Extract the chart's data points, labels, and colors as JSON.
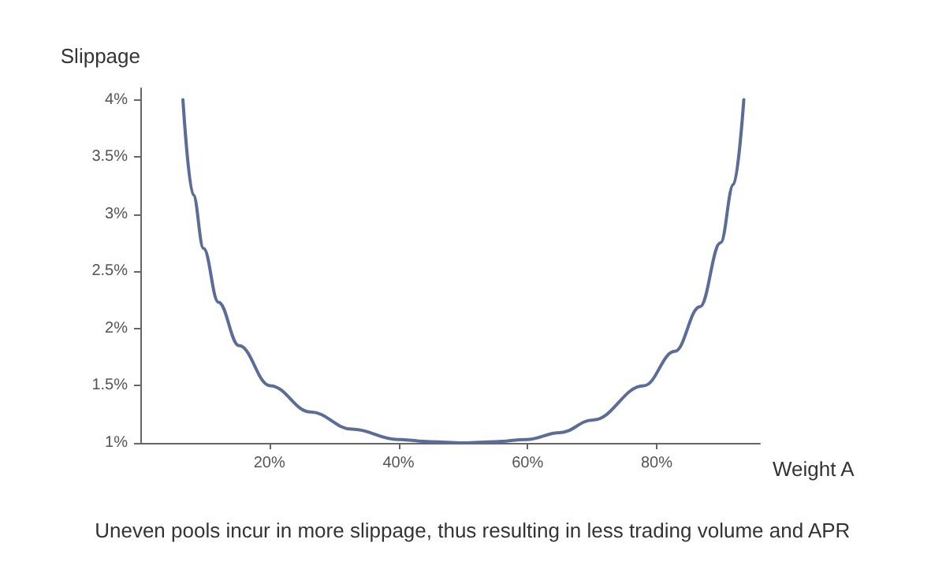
{
  "chart_data": {
    "type": "line",
    "xlabel": "Weight A",
    "ylabel": "Slippage",
    "annotations": [
      "Uneven pools incur in more slippage, thus resulting in less trading volume and APR"
    ],
    "series": [
      {
        "color": "#5b6d97",
        "x": [
          6.6,
          8.2,
          9.8,
          12.1,
          15.3,
          20.1,
          26.4,
          32.8,
          39.9,
          45,
          50,
          55,
          59.8,
          65,
          70.1,
          78,
          82.8,
          86.7,
          89.9,
          91.9,
          93.5
        ],
        "values": [
          4.0,
          3.17,
          2.7,
          2.23,
          1.85,
          1.5,
          1.27,
          1.12,
          1.03,
          1.01,
          1.0,
          1.01,
          1.03,
          1.09,
          1.2,
          1.5,
          1.8,
          2.19,
          2.75,
          3.26,
          4.0
        ]
      }
    ],
    "xlim": [
      0,
      96
    ],
    "ylim": [
      1,
      4.1
    ],
    "xticks": [
      {
        "value": 20,
        "label": "20%"
      },
      {
        "value": 40,
        "label": "40%"
      },
      {
        "value": 60,
        "label": "60%"
      },
      {
        "value": 80,
        "label": "80%"
      }
    ],
    "yticks": [
      {
        "value": 1,
        "label": "1%"
      },
      {
        "value": 1.5,
        "label": "1.5%"
      },
      {
        "value": 2,
        "label": "2%"
      },
      {
        "value": 2.5,
        "label": "2.5%"
      },
      {
        "value": 3,
        "label": "3%"
      },
      {
        "value": 3.5,
        "label": "3.5%"
      },
      {
        "value": 4,
        "label": "4%"
      }
    ],
    "grid": false,
    "marker": "none",
    "line_style": "solid"
  }
}
